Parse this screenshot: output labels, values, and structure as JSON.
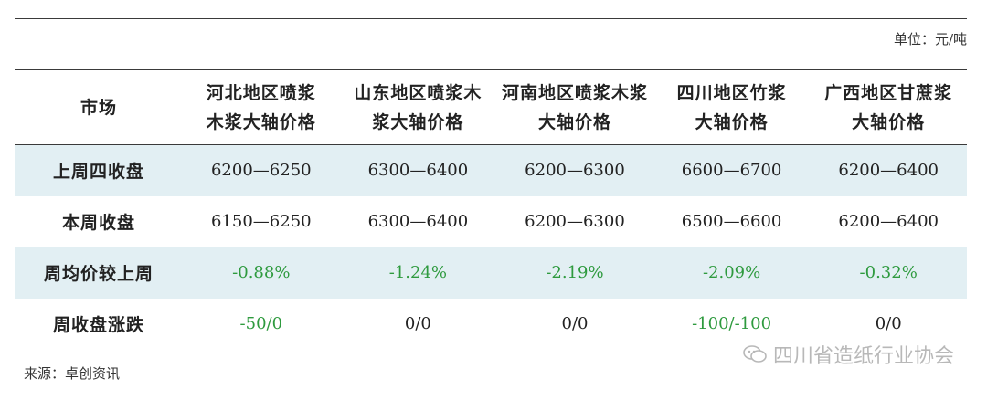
{
  "unit_label": "单位：元/吨",
  "header": {
    "market": "市场",
    "columns": [
      [
        "河北地区喷浆",
        "木浆大轴价格"
      ],
      [
        "山东地区喷浆木",
        "浆大轴价格"
      ],
      [
        "河南地区喷浆木浆",
        "大轴价格"
      ],
      [
        "四川地区竹浆",
        "大轴价格"
      ],
      [
        "广西地区甘蔗浆",
        "大轴价格"
      ]
    ]
  },
  "rows": [
    {
      "label": "上周四收盘",
      "values": [
        "6200—6250",
        "6300—6400",
        "6200—6300",
        "6600—6700",
        "6200—6400"
      ]
    },
    {
      "label": "本周收盘",
      "values": [
        "6150—6250",
        "6300—6400",
        "6200—6300",
        "6500—6600",
        "6200—6400"
      ]
    },
    {
      "label": "周均价较上周",
      "values": [
        "-0.88%",
        "-1.24%",
        "-2.19%",
        "-2.09%",
        "-0.32%"
      ]
    },
    {
      "label": "周收盘涨跌",
      "values": [
        "-50/0",
        "0/0",
        "0/0",
        "-100/-100",
        "0/0"
      ]
    }
  ],
  "source": "来源：卓创资讯",
  "watermark": "四川省造纸行业协会",
  "colors": {
    "change_text": "#2e9a3e",
    "row_shade": "#e2eff3"
  }
}
